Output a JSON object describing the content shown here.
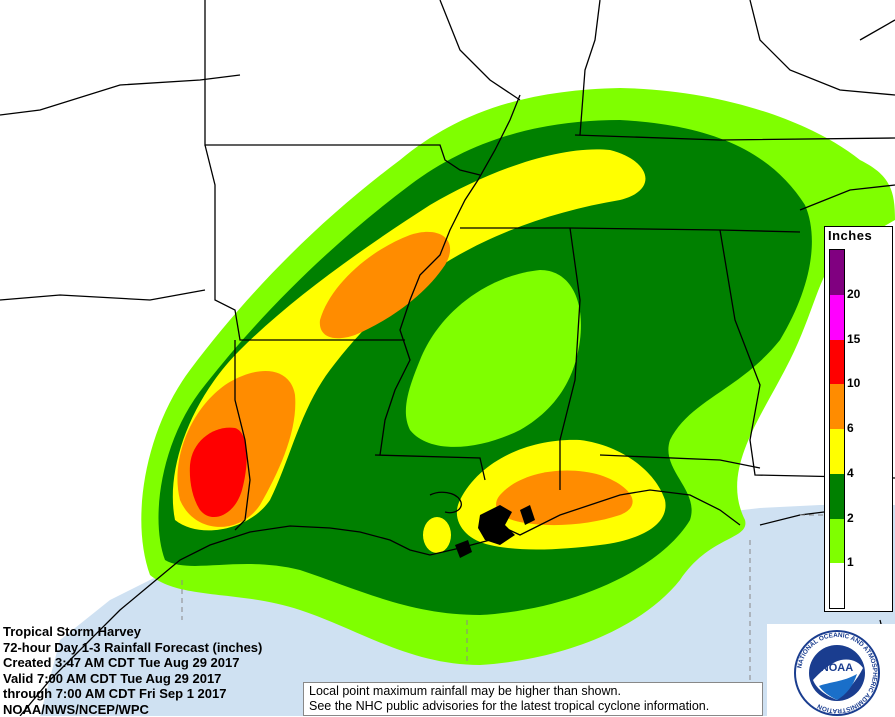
{
  "info": {
    "line1": "Tropical Storm Harvey",
    "line2": "72-hour Day 1-3 Rainfall Forecast (inches)",
    "line3": "Created 3:47 AM CDT Tue Aug 29 2017",
    "line4": "Valid 7:00 AM CDT Tue Aug 29 2017",
    "line5": "through 7:00 AM CDT Fri Sep 1 2017",
    "line6": "NOAA/NWS/NCEP/WPC"
  },
  "note": {
    "line1": "Local point maximum rainfall may be higher than shown.",
    "line2": "See the NHC public advisories for the latest tropical cyclone information."
  },
  "legend": {
    "title": "Inches",
    "levels": [
      {
        "label": "",
        "color": "#ffffff"
      },
      {
        "label": "1",
        "color": "#7fff00"
      },
      {
        "label": "2",
        "color": "#008000"
      },
      {
        "label": "4",
        "color": "#ffff00"
      },
      {
        "label": "6",
        "color": "#ff8c00"
      },
      {
        "label": "10",
        "color": "#ff0000"
      },
      {
        "label": "15",
        "color": "#ff00ff"
      },
      {
        "label": "20",
        "color": "#800080"
      }
    ]
  },
  "logo": {
    "text": "NOAA",
    "ring_text": "NATIONAL OCEANIC AND ATMOSPHERIC ADMINISTRATION"
  },
  "colors": {
    "water": "#cfe1f2",
    "land": "#ffffff",
    "border": "#000000"
  }
}
